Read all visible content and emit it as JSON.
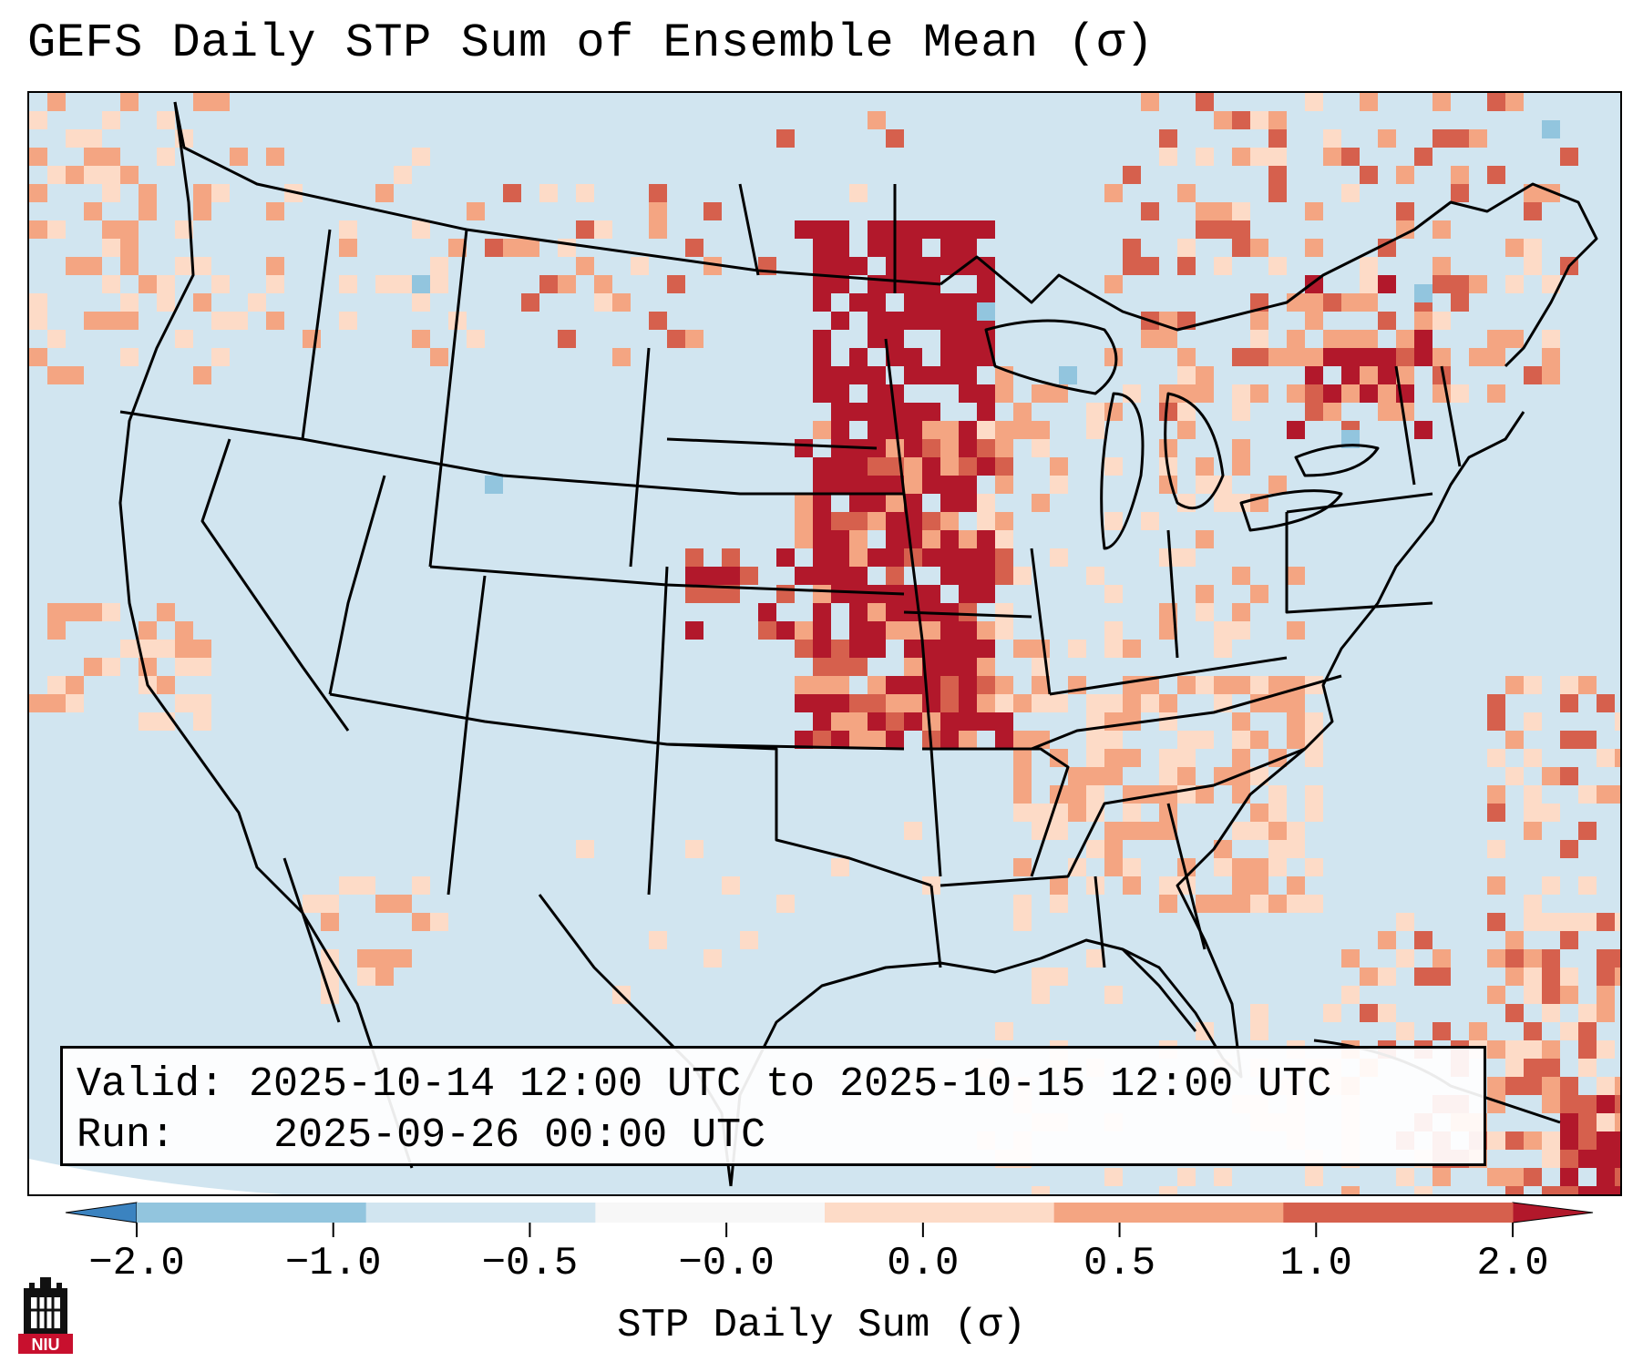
{
  "title": "GEFS Daily STP Sum of Ensemble Mean (σ)",
  "info": {
    "valid_label": "Valid:",
    "valid_value": "2025-10-14 12:00 UTC to 2025-10-15 12:00 UTC",
    "run_label": "Run:",
    "run_value": "2025-09-26 00:00 UTC"
  },
  "colorbar": {
    "label": "STP Daily Sum (σ)",
    "ticks": [
      "−2.0",
      "−1.0",
      "−0.5",
      "−0.0",
      "0.0",
      "0.5",
      "1.0",
      "2.0"
    ],
    "colors": [
      "#3b83c0",
      "#92c5de",
      "#d1e5f0",
      "#f7f7f7",
      "#fddbc7",
      "#f4a582",
      "#d6604d",
      "#b2182b"
    ]
  },
  "map_legend_colors": {
    "ocean_land_base": "#d1e5f0",
    "light_positive": "#fddbc7",
    "medium_positive": "#f4a582",
    "strong_positive": "#d6604d",
    "max_positive": "#b2182b",
    "negative": "#92c5de"
  },
  "logo": {
    "text": "NIU"
  }
}
